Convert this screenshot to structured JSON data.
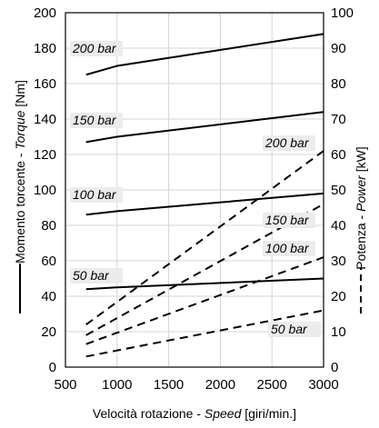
{
  "chart_data": {
    "type": "line",
    "x": [
      700,
      3000
    ],
    "xlim": [
      500,
      3000
    ],
    "x_ticks": [
      "500",
      "1000",
      "1500",
      "2000",
      "2500",
      "3000"
    ],
    "xlabel": {
      "prefix": "Velocità rotazione - ",
      "italic": "Speed",
      "suffix": " [giri/min.]"
    },
    "y_left": {
      "lim": [
        0,
        200
      ],
      "ticks": [
        "0",
        "20",
        "40",
        "60",
        "80",
        "100",
        "120",
        "140",
        "160",
        "180",
        "200"
      ],
      "label": {
        "prefix": "Momento torcente - ",
        "italic": "Torque",
        "suffix": " [Nm]"
      },
      "legend_style": "solid"
    },
    "y_right": {
      "lim": [
        0,
        100
      ],
      "ticks": [
        "0",
        "10",
        "20",
        "30",
        "40",
        "50",
        "60",
        "70",
        "80",
        "90",
        "100"
      ],
      "label": {
        "prefix": "Potenza - ",
        "italic": "Power",
        "suffix": " [kW]"
      },
      "legend_style": "dashed"
    },
    "torque_series": [
      {
        "name": "200 bar",
        "x": [
          700,
          1000,
          3000
        ],
        "values": [
          165,
          170,
          188
        ]
      },
      {
        "name": "150 bar",
        "x": [
          700,
          1000,
          3000
        ],
        "values": [
          127,
          130,
          144
        ]
      },
      {
        "name": "100 bar",
        "x": [
          700,
          1000,
          3000
        ],
        "values": [
          86,
          88,
          98
        ]
      },
      {
        "name": "50 bar",
        "x": [
          700,
          1000,
          3000
        ],
        "values": [
          44,
          45,
          50
        ]
      }
    ],
    "power_series": [
      {
        "name": "200 bar",
        "x": [
          700,
          3000
        ],
        "values": [
          12,
          61
        ]
      },
      {
        "name": "150 bar",
        "x": [
          700,
          3000
        ],
        "values": [
          9,
          46
        ]
      },
      {
        "name": "100 bar",
        "x": [
          700,
          3000
        ],
        "values": [
          6.5,
          31
        ]
      },
      {
        "name": "50 bar",
        "x": [
          700,
          3000
        ],
        "values": [
          3,
          16
        ]
      }
    ],
    "grid": true
  }
}
